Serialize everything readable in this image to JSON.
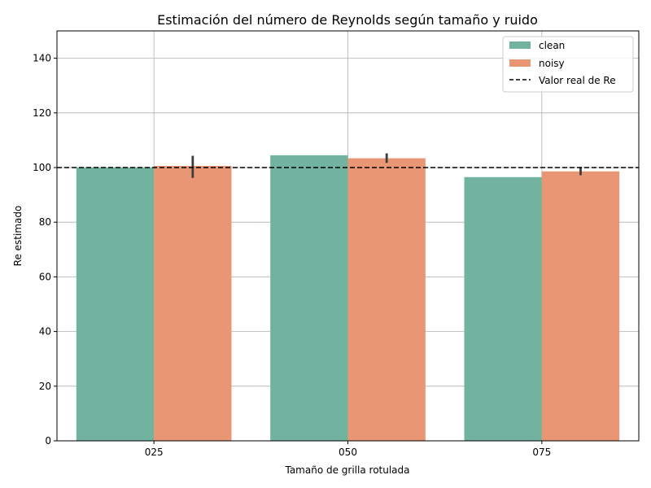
{
  "chart_data": {
    "type": "bar",
    "title": "Estimación del número de Reynolds según tamaño y ruido",
    "xlabel": "Tamaño de grilla rotulada",
    "ylabel": "Re estimado",
    "categories": [
      "025",
      "050",
      "075"
    ],
    "ylim": [
      0,
      150
    ],
    "yticks": [
      0,
      20,
      40,
      60,
      80,
      100,
      120,
      140
    ],
    "grid": true,
    "legend_position": "top-right",
    "series": [
      {
        "name": "clean",
        "color": "#72b3a0",
        "values": [
          100.0,
          104.5,
          96.5
        ]
      },
      {
        "name": "noisy",
        "color": "#e99674",
        "values": [
          100.6,
          103.4,
          98.6
        ],
        "error_low": [
          96.2,
          101.7,
          97.2
        ],
        "error_high": [
          104.3,
          105.2,
          100.2
        ]
      }
    ],
    "reference_line": {
      "label": "Valor real de Re",
      "value": 100,
      "style": "dashed",
      "color": "#000000"
    }
  }
}
